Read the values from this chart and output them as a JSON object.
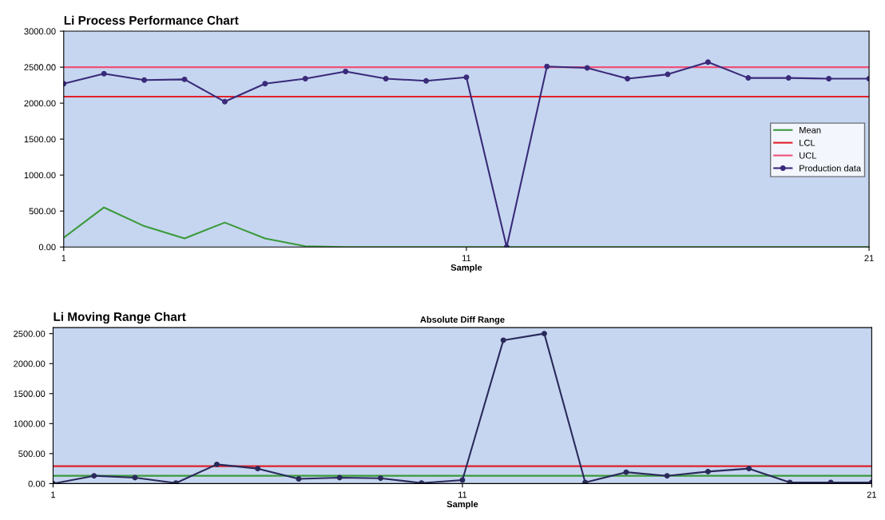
{
  "chart_data": [
    {
      "type": "line",
      "title": "Li Process Performance Chart",
      "xlabel": "Sample",
      "x": [
        1,
        2,
        3,
        4,
        5,
        6,
        7,
        8,
        9,
        10,
        11,
        12,
        13,
        14,
        15,
        16,
        17,
        18,
        19,
        20,
        21
      ],
      "series": [
        {
          "name": "Mean",
          "color": "#3a9a3a",
          "marker": "none",
          "values": [
            130,
            550,
            290,
            120,
            340,
            120,
            10,
            0,
            0,
            0,
            0,
            0,
            0,
            0,
            0,
            0,
            0,
            0,
            0,
            0,
            0
          ]
        },
        {
          "name": "LCL",
          "color": "#e0202a",
          "marker": "none",
          "values": [
            2090,
            2090,
            2090,
            2090,
            2090,
            2090,
            2090,
            2090,
            2090,
            2090,
            2090,
            2090,
            2090,
            2090,
            2090,
            2090,
            2090,
            2090,
            2090,
            2090,
            2090
          ]
        },
        {
          "name": "UCL",
          "color": "#f0507a",
          "marker": "none",
          "values": [
            2500,
            2500,
            2500,
            2500,
            2500,
            2500,
            2500,
            2500,
            2500,
            2500,
            2500,
            2500,
            2500,
            2500,
            2500,
            2500,
            2500,
            2500,
            2500,
            2500,
            2500
          ]
        },
        {
          "name": "Production data",
          "color": "#3a2a7a",
          "marker": "circle",
          "values": [
            2270,
            2410,
            2320,
            2330,
            2020,
            2270,
            2340,
            2440,
            2340,
            2310,
            2360,
            0,
            2510,
            2490,
            2340,
            2400,
            2570,
            2350,
            2350,
            2340,
            2340
          ]
        }
      ],
      "xlim": [
        1,
        21
      ],
      "xticks": [
        1,
        11,
        21
      ],
      "ylim": [
        0,
        3000
      ],
      "yticks": [
        {
          "value": 0,
          "label": "0.00"
        },
        {
          "value": 500,
          "label": "500.00"
        },
        {
          "value": 1000,
          "label": "1000.00"
        },
        {
          "value": 1500,
          "label": "1500.00"
        },
        {
          "value": 2000,
          "label": "2000.00"
        },
        {
          "value": 2500,
          "label": "2500.00"
        },
        {
          "value": 3000,
          "label": "3000.00"
        }
      ],
      "grid": false,
      "legend": "right"
    },
    {
      "type": "line",
      "title": "Li Moving Range Chart",
      "subtitle": "Absolute Diff Range",
      "xlabel": "Sample",
      "x": [
        1,
        2,
        3,
        4,
        5,
        6,
        7,
        8,
        9,
        10,
        11,
        12,
        13,
        14,
        15,
        16,
        17,
        18,
        19,
        20,
        21
      ],
      "series": [
        {
          "color": "#3a9a3a",
          "marker": "none",
          "values": [
            130,
            130,
            130,
            130,
            130,
            130,
            130,
            130,
            130,
            130,
            130,
            130,
            130,
            130,
            130,
            130,
            130,
            130,
            130,
            130,
            130
          ]
        },
        {
          "color": "#e0202a",
          "marker": "none",
          "values": [
            290,
            290,
            290,
            290,
            290,
            290,
            290,
            290,
            290,
            290,
            290,
            290,
            290,
            290,
            290,
            290,
            290,
            290,
            290,
            290,
            290
          ]
        },
        {
          "color": "#2a2a5a",
          "marker": "circle",
          "values": [
            0,
            130,
            100,
            10,
            320,
            250,
            80,
            100,
            90,
            10,
            60,
            2390,
            2500,
            20,
            190,
            130,
            200,
            250,
            20,
            20,
            20
          ]
        }
      ],
      "xlim": [
        1,
        21
      ],
      "xticks": [
        1,
        11,
        21
      ],
      "ylim": [
        0,
        2600
      ],
      "yticks": [
        {
          "value": 0,
          "label": "0.00"
        },
        {
          "value": 500,
          "label": "500.00"
        },
        {
          "value": 1000,
          "label": "1000.00"
        },
        {
          "value": 1500,
          "label": "1500.00"
        },
        {
          "value": 2000,
          "label": "2000.00"
        },
        {
          "value": 2500,
          "label": "2500.00"
        }
      ],
      "grid": false,
      "legend": false
    }
  ]
}
